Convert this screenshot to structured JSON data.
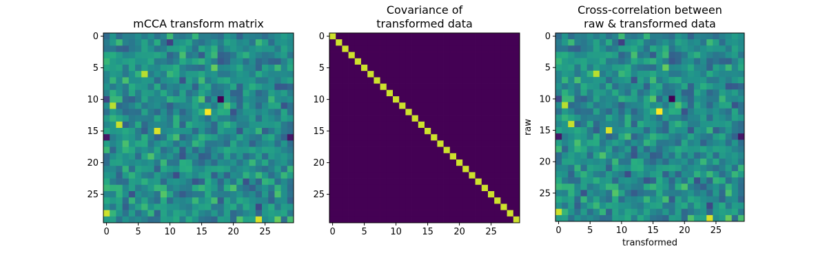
{
  "chart_data": [
    {
      "type": "heatmap",
      "title": [
        "mCCA transform matrix"
      ],
      "xlabel": "",
      "ylabel": "",
      "size": 30,
      "colormap": "viridis",
      "pattern": "random",
      "seed": 11,
      "xticks": [
        0,
        5,
        10,
        15,
        20,
        25
      ],
      "yticks": [
        0,
        5,
        10,
        15,
        20,
        25
      ],
      "highlights": [
        {
          "row": 10,
          "col": 18,
          "value": 0.0
        },
        {
          "row": 12,
          "col": 16,
          "value": 1.0
        },
        {
          "row": 15,
          "col": 8,
          "value": 0.95
        },
        {
          "row": 16,
          "col": 0,
          "value": 0.08
        },
        {
          "row": 16,
          "col": 29,
          "value": 0.08
        },
        {
          "row": 11,
          "col": 1,
          "value": 0.9
        },
        {
          "row": 14,
          "col": 2,
          "value": 0.92
        },
        {
          "row": 6,
          "col": 6,
          "value": 0.9
        },
        {
          "row": 28,
          "col": 0,
          "value": 0.93
        },
        {
          "row": 29,
          "col": 24,
          "value": 0.95
        }
      ]
    },
    {
      "type": "heatmap",
      "title": [
        "Covariance of",
        "transformed data"
      ],
      "xlabel": "",
      "ylabel": "",
      "size": 30,
      "colormap": "viridis",
      "pattern": "identity",
      "diagonal_value": 0.93,
      "off_diagonal_value": 0.0,
      "xticks": [
        0,
        5,
        10,
        15,
        20,
        25
      ],
      "yticks": [
        0,
        5,
        10,
        15,
        20,
        25
      ]
    },
    {
      "type": "heatmap",
      "title": [
        "Cross-correlation between",
        "raw & transformed data"
      ],
      "xlabel": "transformed",
      "ylabel": "raw",
      "size": 30,
      "colormap": "viridis",
      "pattern": "random",
      "seed": 11,
      "xticks": [
        0,
        5,
        10,
        15,
        20,
        25
      ],
      "yticks": [
        0,
        5,
        10,
        15,
        20,
        25
      ],
      "highlights": [
        {
          "row": 10,
          "col": 18,
          "value": 0.0
        },
        {
          "row": 12,
          "col": 16,
          "value": 1.0
        },
        {
          "row": 15,
          "col": 8,
          "value": 0.95
        },
        {
          "row": 16,
          "col": 0,
          "value": 0.08
        },
        {
          "row": 16,
          "col": 29,
          "value": 0.08
        },
        {
          "row": 11,
          "col": 1,
          "value": 0.9
        },
        {
          "row": 14,
          "col": 2,
          "value": 0.92
        },
        {
          "row": 6,
          "col": 6,
          "value": 0.9
        },
        {
          "row": 28,
          "col": 0,
          "value": 0.93
        },
        {
          "row": 29,
          "col": 24,
          "value": 0.95
        }
      ]
    }
  ]
}
